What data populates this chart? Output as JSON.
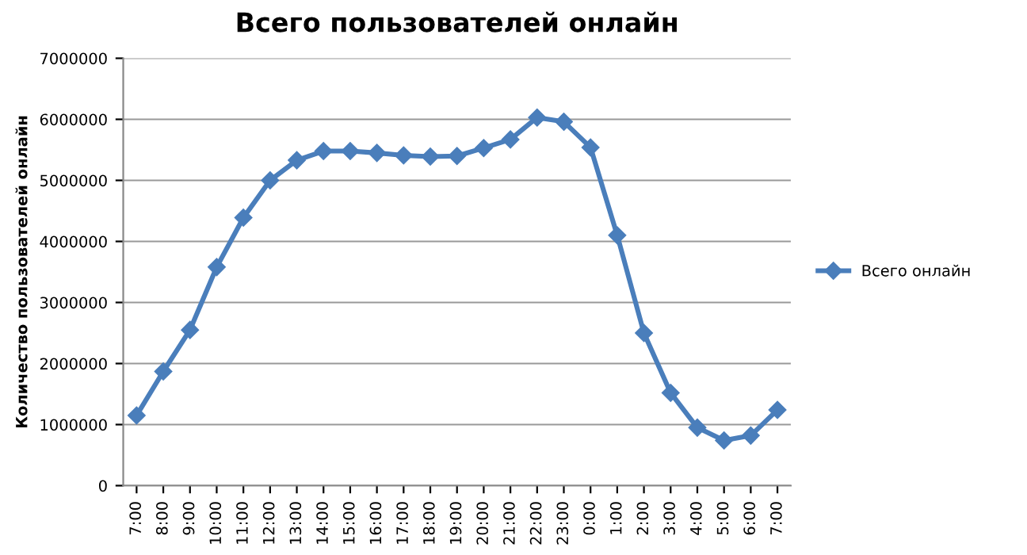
{
  "chart_data": {
    "type": "line",
    "title": "Всего пользователей онлайн",
    "ylabel": "Количество пользователей онлайн",
    "categories": [
      "7:00",
      "8:00",
      "9:00",
      "10:00",
      "11:00",
      "12:00",
      "13:00",
      "14:00",
      "15:00",
      "16:00",
      "17:00",
      "18:00",
      "19:00",
      "20:00",
      "21:00",
      "22:00",
      "23:00",
      "0:00",
      "1:00",
      "2:00",
      "3:00",
      "4:00",
      "5:00",
      "6:00",
      "7:00"
    ],
    "series": [
      {
        "name": "Всего онлайн",
        "color": "#4a7ebb",
        "values": [
          1150000,
          1870000,
          2550000,
          3580000,
          4390000,
          5000000,
          5330000,
          5480000,
          5480000,
          5450000,
          5410000,
          5390000,
          5400000,
          5530000,
          5670000,
          6030000,
          5960000,
          5540000,
          4100000,
          2500000,
          1520000,
          950000,
          740000,
          820000,
          1240000
        ]
      }
    ],
    "ylim": [
      0,
      7000000
    ],
    "yticks": [
      0,
      1000000,
      2000000,
      3000000,
      4000000,
      5000000,
      6000000,
      7000000
    ],
    "grid": "y",
    "legend": "right",
    "marker": "diamond",
    "line_style": "solid"
  }
}
